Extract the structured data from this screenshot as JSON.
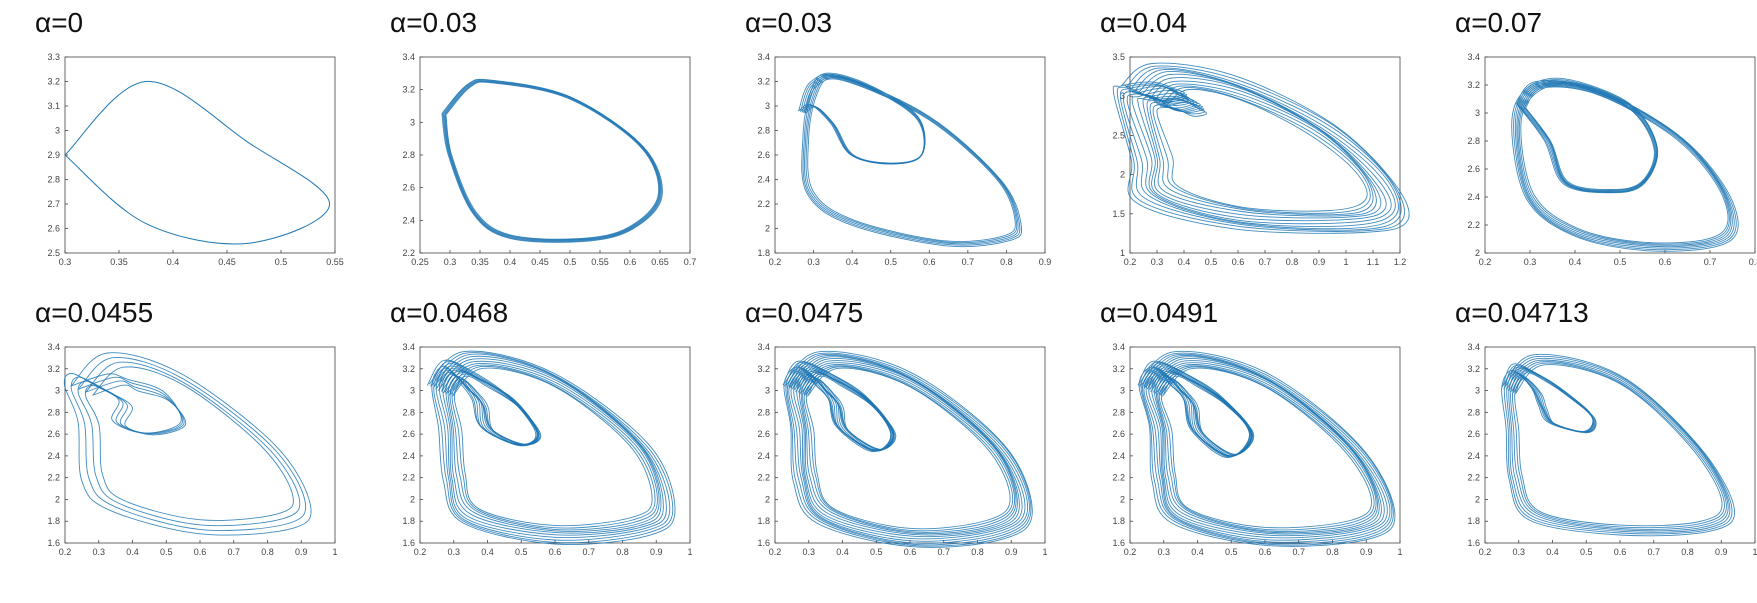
{
  "chart_data": [
    {
      "type": "line",
      "title": "α=0",
      "xlim": [
        0.3,
        0.55
      ],
      "ylim": [
        2.5,
        3.3
      ],
      "xticks": [
        "0.3",
        "0.35",
        "0.4",
        "0.45",
        "0.5",
        "0.55"
      ],
      "yticks": [
        "2.5",
        "2.6",
        "2.7",
        "2.8",
        "2.9",
        "3",
        "3.1",
        "3.2",
        "3.3"
      ],
      "series": [
        {
          "x": [
            0.3,
            0.375,
            0.47,
            0.545,
            0.47,
            0.375,
            0.3
          ],
          "y": [
            2.9,
            3.2,
            2.95,
            2.7,
            2.54,
            2.62,
            2.9
          ]
        }
      ],
      "strands": 1,
      "spread": 0,
      "color": "#1f77b4"
    },
    {
      "type": "line",
      "title": "α=0.03",
      "xlim": [
        0.25,
        0.7
      ],
      "ylim": [
        2.2,
        3.4
      ],
      "xticks": [
        "0.25",
        "0.3",
        "0.35",
        "0.4",
        "0.45",
        "0.5",
        "0.55",
        "0.6",
        "0.65",
        "0.7"
      ],
      "yticks": [
        "2.2",
        "2.4",
        "2.6",
        "2.8",
        "3",
        "3.2",
        "3.4"
      ],
      "series": [
        {
          "x": [
            0.29,
            0.33,
            0.37,
            0.5,
            0.62,
            0.65,
            0.6,
            0.52,
            0.4,
            0.34,
            0.3,
            0.29
          ],
          "y": [
            3.05,
            3.22,
            3.25,
            3.15,
            2.85,
            2.55,
            2.35,
            2.28,
            2.3,
            2.45,
            2.8,
            3.05
          ]
        }
      ],
      "strands": 6,
      "spread": 0.006,
      "color": "#1f77b4"
    },
    {
      "type": "line",
      "title": "α=0.03",
      "xlim": [
        0.2,
        0.9
      ],
      "ylim": [
        1.8,
        3.4
      ],
      "xticks": [
        "0.2",
        "0.3",
        "0.4",
        "0.5",
        "0.6",
        "0.7",
        "0.8",
        "0.9"
      ],
      "yticks": [
        "1.8",
        "2",
        "2.2",
        "2.4",
        "2.6",
        "2.8",
        "3",
        "3.2",
        "3.4"
      ],
      "series": [
        {
          "x": [
            0.27,
            0.3,
            0.38,
            0.6,
            0.78,
            0.83,
            0.8,
            0.64,
            0.4,
            0.29,
            0.28,
            0.3,
            0.34,
            0.45,
            0.57,
            0.58,
            0.5,
            0.4,
            0.35,
            0.3,
            0.27
          ],
          "y": [
            2.95,
            3.18,
            3.22,
            2.9,
            2.4,
            2.05,
            1.92,
            1.88,
            2.05,
            2.3,
            2.75,
            3.1,
            3.25,
            3.15,
            2.9,
            2.6,
            2.53,
            2.6,
            2.85,
            3.0,
            2.95
          ]
        }
      ],
      "strands": 5,
      "spread": 0.01,
      "color": "#1f77b4"
    },
    {
      "type": "line",
      "title": "α=0.04",
      "xlim": [
        0.2,
        1.2
      ],
      "ylim": [
        1.0,
        3.5
      ],
      "xticks": [
        "0.2",
        "0.3",
        "0.4",
        "0.5",
        "0.6",
        "0.7",
        "0.8",
        "0.9",
        "1",
        "1.1",
        "1.2"
      ],
      "yticks": [
        "1",
        "1.5",
        "2",
        "2.5",
        "3",
        "3.5"
      ],
      "series": [
        {
          "x": [
            0.25,
            0.35,
            0.6,
            0.9,
            1.1,
            1.15,
            1.0,
            0.6,
            0.3,
            0.28,
            0.22,
            0.25,
            0.35,
            0.42,
            0.44,
            0.37,
            0.3,
            0.25
          ],
          "y": [
            3.0,
            3.25,
            3.1,
            2.6,
            2.0,
            1.55,
            1.4,
            1.45,
            1.75,
            2.2,
            2.9,
            3.0,
            3.05,
            2.95,
            2.9,
            2.85,
            2.95,
            3.0
          ]
        }
      ],
      "strands": 12,
      "spread": 0.06,
      "color": "#1f77b4"
    },
    {
      "type": "line",
      "title": "α=0.07",
      "xlim": [
        0.2,
        0.8
      ],
      "ylim": [
        2.0,
        3.4
      ],
      "xticks": [
        "0.2",
        "0.3",
        "0.4",
        "0.5",
        "0.6",
        "0.7",
        "0.8"
      ],
      "yticks": [
        "2",
        "2.2",
        "2.4",
        "2.6",
        "2.8",
        "3",
        "3.2",
        "3.4"
      ],
      "series": [
        {
          "x": [
            0.28,
            0.32,
            0.45,
            0.62,
            0.72,
            0.75,
            0.7,
            0.55,
            0.4,
            0.3,
            0.27,
            0.3,
            0.38,
            0.52,
            0.58,
            0.55,
            0.48,
            0.38,
            0.34,
            0.28
          ],
          "y": [
            3.05,
            3.2,
            3.15,
            2.85,
            2.5,
            2.2,
            2.07,
            2.05,
            2.15,
            2.4,
            2.9,
            3.15,
            3.22,
            3.05,
            2.75,
            2.5,
            2.44,
            2.5,
            2.8,
            3.05
          ]
        }
      ],
      "strands": 7,
      "spread": 0.015,
      "color": "#1f77b4"
    },
    {
      "type": "line",
      "title": "α=0.0455",
      "xlim": [
        0.2,
        1.0
      ],
      "ylim": [
        1.6,
        3.4
      ],
      "xticks": [
        "0.2",
        "0.3",
        "0.4",
        "0.5",
        "0.6",
        "0.7",
        "0.8",
        "0.9",
        "1"
      ],
      "yticks": [
        "1.6",
        "1.8",
        "2",
        "2.2",
        "2.4",
        "2.6",
        "2.8",
        "3",
        "3.2",
        "3.4"
      ],
      "series": [
        {
          "x": [
            0.25,
            0.35,
            0.55,
            0.8,
            0.9,
            0.85,
            0.6,
            0.35,
            0.28,
            0.27,
            0.23,
            0.25,
            0.32,
            0.38,
            0.36,
            0.45,
            0.55,
            0.5,
            0.4,
            0.35,
            0.25
          ],
          "y": [
            3.0,
            3.28,
            3.1,
            2.5,
            2.0,
            1.8,
            1.75,
            1.95,
            2.2,
            2.7,
            3.0,
            3.1,
            3.0,
            2.88,
            2.7,
            2.6,
            2.7,
            2.95,
            3.05,
            3.1,
            3.0
          ]
        }
      ],
      "strands": 4,
      "spread": 0.03,
      "color": "#1f77b4"
    },
    {
      "type": "line",
      "title": "α=0.0468",
      "xlim": [
        0.2,
        1.0
      ],
      "ylim": [
        1.6,
        3.4
      ],
      "xticks": [
        "0.2",
        "0.3",
        "0.4",
        "0.5",
        "0.6",
        "0.7",
        "0.8",
        "0.9",
        "1"
      ],
      "yticks": [
        "1.6",
        "1.8",
        "2",
        "2.2",
        "2.4",
        "2.6",
        "2.8",
        "3",
        "3.2",
        "3.4"
      ],
      "series": [
        {
          "x": [
            0.26,
            0.36,
            0.6,
            0.85,
            0.92,
            0.85,
            0.6,
            0.35,
            0.3,
            0.29,
            0.27,
            0.3,
            0.35,
            0.38,
            0.4,
            0.5,
            0.55,
            0.48,
            0.38,
            0.3,
            0.26
          ],
          "y": [
            3.0,
            3.28,
            3.1,
            2.5,
            1.95,
            1.75,
            1.68,
            1.85,
            2.2,
            2.65,
            3.0,
            3.15,
            3.0,
            2.88,
            2.65,
            2.5,
            2.6,
            2.9,
            3.1,
            3.2,
            3.0
          ]
        }
      ],
      "strands": 10,
      "spread": 0.035,
      "color": "#1f77b4"
    },
    {
      "type": "line",
      "title": "α=0.0475",
      "xlim": [
        0.2,
        1.0
      ],
      "ylim": [
        1.6,
        3.4
      ],
      "xticks": [
        "0.2",
        "0.3",
        "0.4",
        "0.5",
        "0.6",
        "0.7",
        "0.8",
        "0.9",
        "1"
      ],
      "yticks": [
        "1.6",
        "1.8",
        "2",
        "2.2",
        "2.4",
        "2.6",
        "2.8",
        "3",
        "3.2",
        "3.4"
      ],
      "series": [
        {
          "x": [
            0.26,
            0.36,
            0.6,
            0.85,
            0.93,
            0.85,
            0.6,
            0.35,
            0.29,
            0.28,
            0.26,
            0.3,
            0.35,
            0.38,
            0.4,
            0.5,
            0.55,
            0.48,
            0.38,
            0.3,
            0.26
          ],
          "y": [
            3.0,
            3.28,
            3.1,
            2.5,
            1.95,
            1.72,
            1.65,
            1.85,
            2.2,
            2.65,
            3.0,
            3.15,
            3.0,
            2.88,
            2.65,
            2.45,
            2.6,
            2.9,
            3.1,
            3.2,
            3.0
          ]
        }
      ],
      "strands": 12,
      "spread": 0.035,
      "color": "#1f77b4"
    },
    {
      "type": "line",
      "title": "α=0.0491",
      "xlim": [
        0.2,
        1.0
      ],
      "ylim": [
        1.6,
        3.4
      ],
      "xticks": [
        "0.2",
        "0.3",
        "0.4",
        "0.5",
        "0.6",
        "0.7",
        "0.8",
        "0.9",
        "1"
      ],
      "yticks": [
        "1.6",
        "1.8",
        "2",
        "2.2",
        "2.4",
        "2.6",
        "2.8",
        "3",
        "3.2",
        "3.4"
      ],
      "series": [
        {
          "x": [
            0.26,
            0.36,
            0.6,
            0.85,
            0.95,
            0.88,
            0.6,
            0.35,
            0.3,
            0.29,
            0.26,
            0.3,
            0.35,
            0.38,
            0.4,
            0.5,
            0.56,
            0.48,
            0.38,
            0.3,
            0.26
          ],
          "y": [
            3.0,
            3.28,
            3.1,
            2.5,
            1.95,
            1.72,
            1.66,
            1.85,
            2.2,
            2.65,
            3.0,
            3.15,
            3.0,
            2.88,
            2.62,
            2.4,
            2.6,
            2.9,
            3.1,
            3.2,
            3.0
          ]
        }
      ],
      "strands": 12,
      "spread": 0.035,
      "color": "#1f77b4"
    },
    {
      "type": "line",
      "title": "α=0.04713",
      "xlim": [
        0.2,
        1.0
      ],
      "ylim": [
        1.6,
        3.4
      ],
      "xticks": [
        "0.2",
        "0.3",
        "0.4",
        "0.5",
        "0.6",
        "0.7",
        "0.8",
        "0.9",
        "1"
      ],
      "yticks": [
        "1.6",
        "1.8",
        "2",
        "2.2",
        "2.4",
        "2.6",
        "2.8",
        "3",
        "3.2",
        "3.4"
      ],
      "series": [
        {
          "x": [
            0.27,
            0.36,
            0.6,
            0.82,
            0.92,
            0.85,
            0.6,
            0.35,
            0.29,
            0.28,
            0.27,
            0.3,
            0.35,
            0.37,
            0.4,
            0.5,
            0.52,
            0.45,
            0.37,
            0.3,
            0.27
          ],
          "y": [
            3.0,
            3.28,
            3.1,
            2.5,
            1.95,
            1.75,
            1.72,
            1.85,
            2.2,
            2.65,
            3.0,
            3.15,
            3.0,
            2.85,
            2.7,
            2.62,
            2.75,
            2.95,
            3.12,
            3.2,
            3.0
          ]
        }
      ],
      "strands": 7,
      "spread": 0.02,
      "color": "#1f77b4"
    }
  ]
}
